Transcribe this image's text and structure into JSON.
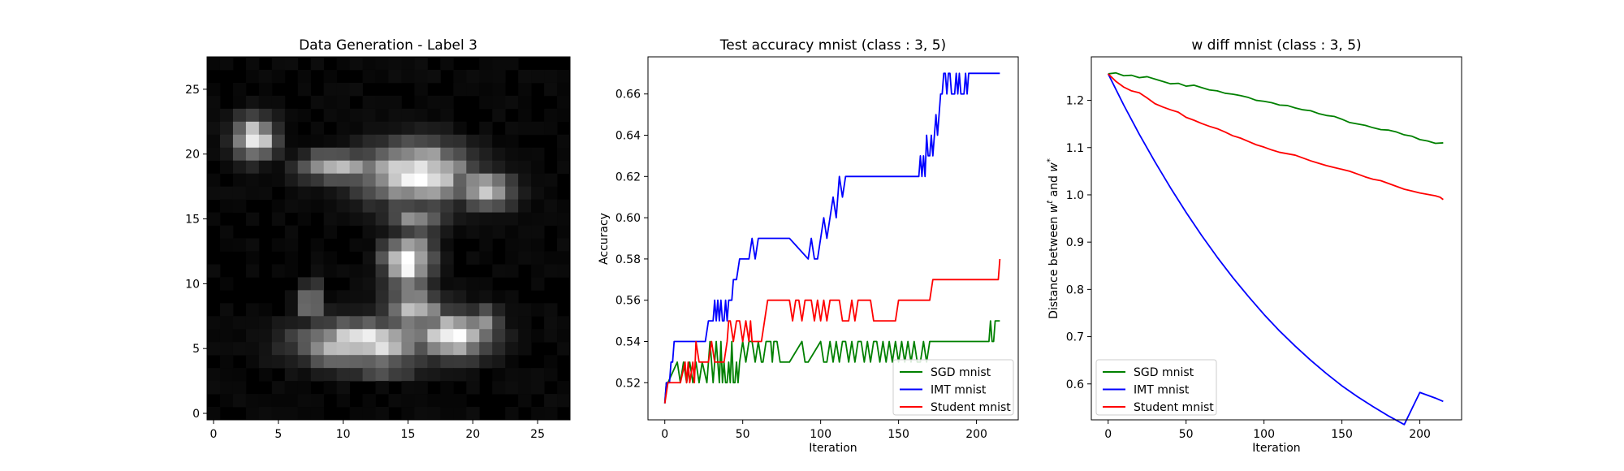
{
  "chart_data": [
    {
      "type": "heatmap",
      "title": "Data Generation - Label 3",
      "xticks": [
        0,
        5,
        10,
        15,
        20,
        25
      ],
      "yticks": [
        0,
        5,
        10,
        15,
        20,
        25
      ],
      "xlim": [
        -0.5,
        27.5
      ],
      "ylim": [
        27.5,
        -0.5
      ],
      "colormap": "gray",
      "grid": false,
      "blobs": [
        {
          "cx": 3.2,
          "cy": 5.8,
          "rx": 1.6,
          "ry": 1.6,
          "v": 0.9
        },
        {
          "cx": 9.5,
          "cy": 8.0,
          "rx": 2.8,
          "ry": 1.2,
          "v": 0.72
        },
        {
          "cx": 15.5,
          "cy": 8.5,
          "rx": 4.2,
          "ry": 2.3,
          "v": 1.0
        },
        {
          "cx": 21.0,
          "cy": 9.8,
          "rx": 2.2,
          "ry": 1.3,
          "v": 0.85
        },
        {
          "cx": 15.5,
          "cy": 12.0,
          "rx": 2.2,
          "ry": 1.3,
          "v": 0.55
        },
        {
          "cx": 15.0,
          "cy": 15.3,
          "rx": 1.8,
          "ry": 2.0,
          "v": 1.0
        },
        {
          "cx": 15.5,
          "cy": 19.0,
          "rx": 2.4,
          "ry": 1.5,
          "v": 0.72
        },
        {
          "cx": 11.5,
          "cy": 21.6,
          "rx": 4.8,
          "ry": 1.7,
          "v": 0.95
        },
        {
          "cx": 18.5,
          "cy": 21.0,
          "rx": 3.0,
          "ry": 1.7,
          "v": 0.9
        },
        {
          "cx": 7.5,
          "cy": 18.5,
          "rx": 0.9,
          "ry": 1.5,
          "v": 0.55
        },
        {
          "cx": 21.0,
          "cy": 20.2,
          "rx": 1.2,
          "ry": 1.4,
          "v": 0.55
        },
        {
          "cx": 13.0,
          "cy": 23.5,
          "rx": 3.5,
          "ry": 0.8,
          "v": 0.4
        }
      ]
    },
    {
      "type": "line",
      "title": "Test accuracy mnist (class : 3, 5)",
      "xlabel": "Iteration",
      "ylabel": "Accuracy",
      "xlim": [
        -10.8,
        226.8
      ],
      "ylim": [
        0.502,
        0.678
      ],
      "xticks": [
        0,
        50,
        100,
        150,
        200
      ],
      "yticks": [
        0.52,
        0.54,
        0.56,
        0.58,
        0.6,
        0.62,
        0.64,
        0.66
      ],
      "yticklabels": [
        "0.52",
        "0.54",
        "0.56",
        "0.58",
        "0.60",
        "0.62",
        "0.64",
        "0.66"
      ],
      "legend_position": "lower-right",
      "grid": false,
      "series": [
        {
          "name": "SGD mnist",
          "color": "#008000",
          "x": [
            0,
            1,
            2,
            8,
            10,
            12,
            14,
            16,
            18,
            20,
            22,
            24,
            27,
            29,
            31,
            33,
            34,
            35,
            36,
            37,
            38,
            39,
            40,
            41,
            42,
            43,
            44,
            45,
            46,
            47,
            48,
            50,
            52,
            54,
            56,
            58,
            60,
            62,
            63,
            65,
            68,
            69,
            70,
            72,
            74,
            80,
            88,
            90,
            92,
            100,
            102,
            104,
            106,
            108,
            110,
            112,
            114,
            116,
            118,
            120,
            122,
            124,
            126,
            128,
            130,
            132,
            134,
            136,
            138,
            140,
            142,
            144,
            146,
            148,
            150,
            152,
            154,
            156,
            158,
            160,
            162,
            164,
            166,
            168,
            170,
            172,
            208,
            209,
            210,
            211,
            212,
            215
          ],
          "y": [
            0.51,
            0.52,
            0.52,
            0.53,
            0.52,
            0.53,
            0.52,
            0.53,
            0.52,
            0.53,
            0.52,
            0.53,
            0.52,
            0.54,
            0.52,
            0.54,
            0.53,
            0.52,
            0.54,
            0.52,
            0.53,
            0.52,
            0.52,
            0.53,
            0.52,
            0.54,
            0.52,
            0.52,
            0.53,
            0.52,
            0.53,
            0.54,
            0.53,
            0.54,
            0.54,
            0.53,
            0.54,
            0.53,
            0.53,
            0.54,
            0.54,
            0.53,
            0.54,
            0.54,
            0.53,
            0.53,
            0.54,
            0.53,
            0.53,
            0.54,
            0.53,
            0.53,
            0.54,
            0.53,
            0.54,
            0.53,
            0.54,
            0.54,
            0.53,
            0.54,
            0.53,
            0.54,
            0.54,
            0.53,
            0.54,
            0.53,
            0.54,
            0.54,
            0.53,
            0.54,
            0.53,
            0.54,
            0.53,
            0.54,
            0.53,
            0.54,
            0.53,
            0.54,
            0.53,
            0.54,
            0.53,
            0.53,
            0.54,
            0.53,
            0.54,
            0.54,
            0.54,
            0.55,
            0.54,
            0.54,
            0.55,
            0.55
          ]
        },
        {
          "name": "IMT mnist",
          "color": "#0000ff",
          "x": [
            0,
            1,
            3,
            4,
            5,
            6,
            8,
            10,
            12,
            14,
            16,
            18,
            20,
            22,
            24,
            26,
            28,
            30,
            31,
            32,
            33,
            34,
            35,
            36,
            37,
            38,
            39,
            40,
            41,
            42,
            43,
            44,
            45,
            46,
            48,
            50,
            52,
            54,
            56,
            58,
            60,
            62,
            63,
            64,
            70,
            80,
            92,
            94,
            96,
            98,
            100,
            102,
            104,
            106,
            108,
            110,
            112,
            114,
            116,
            118,
            120,
            122,
            124,
            126,
            128,
            130,
            150,
            163,
            164,
            165,
            166,
            167,
            168,
            169,
            170,
            171,
            172,
            173,
            174,
            175,
            176,
            177,
            178,
            179,
            180,
            181,
            182,
            183,
            184,
            185,
            186,
            187,
            188,
            189,
            190,
            191,
            192,
            193,
            194,
            195,
            196,
            197,
            198,
            199,
            200,
            201,
            202,
            203,
            204,
            205,
            206,
            207,
            208,
            215
          ],
          "y": [
            0.51,
            0.52,
            0.52,
            0.53,
            0.53,
            0.54,
            0.54,
            0.54,
            0.54,
            0.54,
            0.54,
            0.54,
            0.54,
            0.54,
            0.54,
            0.54,
            0.55,
            0.55,
            0.55,
            0.56,
            0.55,
            0.56,
            0.55,
            0.56,
            0.55,
            0.55,
            0.56,
            0.55,
            0.56,
            0.56,
            0.56,
            0.57,
            0.57,
            0.57,
            0.58,
            0.58,
            0.58,
            0.58,
            0.59,
            0.58,
            0.59,
            0.59,
            0.59,
            0.59,
            0.59,
            0.59,
            0.58,
            0.59,
            0.58,
            0.58,
            0.59,
            0.6,
            0.59,
            0.6,
            0.61,
            0.6,
            0.62,
            0.61,
            0.62,
            0.62,
            0.62,
            0.62,
            0.62,
            0.62,
            0.62,
            0.62,
            0.62,
            0.62,
            0.63,
            0.62,
            0.63,
            0.62,
            0.64,
            0.63,
            0.63,
            0.64,
            0.63,
            0.64,
            0.65,
            0.64,
            0.65,
            0.66,
            0.66,
            0.67,
            0.67,
            0.66,
            0.67,
            0.67,
            0.66,
            0.66,
            0.66,
            0.67,
            0.66,
            0.67,
            0.66,
            0.66,
            0.66,
            0.67,
            0.66,
            0.67,
            0.67,
            0.67,
            0.67,
            0.67,
            0.67,
            0.67,
            0.67,
            0.67,
            0.67,
            0.67,
            0.67,
            0.67,
            0.67,
            0.67
          ]
        },
        {
          "name": "Student mnist",
          "color": "#ff0000",
          "x": [
            0,
            2,
            10,
            13,
            14,
            15,
            16,
            18,
            19,
            20,
            22,
            26,
            28,
            30,
            32,
            38,
            40,
            41,
            42,
            44,
            46,
            48,
            50,
            52,
            54,
            55,
            56,
            58,
            60,
            62,
            64,
            66,
            68,
            70,
            72,
            74,
            76,
            78,
            80,
            82,
            84,
            86,
            88,
            90,
            92,
            94,
            96,
            98,
            100,
            102,
            104,
            106,
            108,
            110,
            112,
            114,
            116,
            118,
            120,
            122,
            124,
            126,
            128,
            130,
            132,
            134,
            136,
            138,
            140,
            142,
            144,
            146,
            148,
            150,
            152,
            154,
            156,
            158,
            160,
            162,
            164,
            166,
            168,
            170,
            172,
            174,
            176,
            178,
            180,
            182,
            184,
            186,
            188,
            190,
            192,
            194,
            196,
            198,
            200,
            202,
            204,
            206,
            208,
            210,
            212,
            213,
            214,
            215
          ],
          "y": [
            0.51,
            0.52,
            0.52,
            0.53,
            0.52,
            0.53,
            0.52,
            0.53,
            0.52,
            0.54,
            0.53,
            0.53,
            0.53,
            0.54,
            0.53,
            0.53,
            0.54,
            0.55,
            0.55,
            0.54,
            0.55,
            0.55,
            0.54,
            0.55,
            0.54,
            0.55,
            0.54,
            0.54,
            0.54,
            0.54,
            0.55,
            0.56,
            0.56,
            0.56,
            0.56,
            0.56,
            0.56,
            0.56,
            0.56,
            0.55,
            0.56,
            0.56,
            0.55,
            0.56,
            0.56,
            0.56,
            0.55,
            0.56,
            0.55,
            0.56,
            0.55,
            0.56,
            0.56,
            0.56,
            0.56,
            0.55,
            0.55,
            0.55,
            0.56,
            0.55,
            0.56,
            0.56,
            0.56,
            0.56,
            0.56,
            0.55,
            0.55,
            0.55,
            0.55,
            0.55,
            0.55,
            0.55,
            0.55,
            0.56,
            0.56,
            0.56,
            0.56,
            0.56,
            0.56,
            0.56,
            0.56,
            0.56,
            0.56,
            0.56,
            0.57,
            0.57,
            0.57,
            0.57,
            0.57,
            0.57,
            0.57,
            0.57,
            0.57,
            0.57,
            0.57,
            0.57,
            0.57,
            0.57,
            0.57,
            0.57,
            0.57,
            0.57,
            0.57,
            0.57,
            0.57,
            0.57,
            0.57,
            0.58
          ]
        }
      ]
    },
    {
      "type": "line",
      "title": "w diff mnist (class : 3, 5)",
      "xlabel": "Iteration",
      "ylabel": "Distance between w^t and w^*",
      "xlim": [
        -10.8,
        226.8
      ],
      "ylim": [
        0.524,
        1.292
      ],
      "xticks": [
        0,
        50,
        100,
        150,
        200
      ],
      "yticks": [
        0.6,
        0.7,
        0.8,
        0.9,
        1.0,
        1.1,
        1.2
      ],
      "yticklabels": [
        "0.6",
        "0.7",
        "0.8",
        "0.9",
        "1.0",
        "1.1",
        "1.2"
      ],
      "legend_position": "lower-left",
      "grid": false,
      "series": [
        {
          "name": "SGD mnist",
          "color": "#008000",
          "x": [
            0,
            5,
            10,
            15,
            20,
            25,
            30,
            35,
            40,
            45,
            50,
            55,
            60,
            65,
            70,
            75,
            80,
            85,
            90,
            95,
            100,
            105,
            110,
            115,
            120,
            125,
            130,
            135,
            140,
            145,
            150,
            155,
            160,
            165,
            170,
            175,
            180,
            185,
            190,
            195,
            200,
            205,
            210,
            215
          ],
          "y": [
            1.256,
            1.258,
            1.252,
            1.253,
            1.248,
            1.25,
            1.245,
            1.24,
            1.235,
            1.236,
            1.23,
            1.232,
            1.227,
            1.222,
            1.22,
            1.215,
            1.213,
            1.21,
            1.206,
            1.2,
            1.198,
            1.195,
            1.19,
            1.189,
            1.184,
            1.18,
            1.178,
            1.172,
            1.168,
            1.166,
            1.16,
            1.153,
            1.15,
            1.147,
            1.142,
            1.138,
            1.137,
            1.133,
            1.127,
            1.124,
            1.117,
            1.114,
            1.109,
            1.11
          ]
        },
        {
          "name": "IMT mnist",
          "color": "#0000ff",
          "x": [
            0,
            10,
            20,
            30,
            40,
            50,
            60,
            70,
            80,
            90,
            100,
            110,
            120,
            130,
            140,
            150,
            160,
            170,
            180,
            190,
            200,
            210,
            215
          ],
          "y": [
            1.256,
            1.19,
            1.128,
            1.07,
            1.015,
            0.963,
            0.914,
            0.868,
            0.825,
            0.785,
            0.747,
            0.712,
            0.68,
            0.65,
            0.622,
            0.596,
            0.573,
            0.552,
            0.532,
            0.514,
            0.582,
            0.57,
            0.563
          ]
        },
        {
          "name": "Student mnist",
          "color": "#ff0000",
          "x": [
            0,
            5,
            10,
            15,
            20,
            25,
            30,
            35,
            40,
            45,
            50,
            55,
            60,
            65,
            70,
            75,
            80,
            85,
            90,
            95,
            100,
            105,
            110,
            115,
            120,
            125,
            130,
            135,
            140,
            145,
            150,
            155,
            160,
            165,
            170,
            175,
            180,
            185,
            190,
            195,
            200,
            205,
            210,
            213,
            215
          ],
          "y": [
            1.256,
            1.24,
            1.228,
            1.22,
            1.216,
            1.205,
            1.193,
            1.186,
            1.18,
            1.175,
            1.164,
            1.158,
            1.151,
            1.145,
            1.14,
            1.133,
            1.125,
            1.12,
            1.113,
            1.106,
            1.101,
            1.095,
            1.09,
            1.087,
            1.084,
            1.078,
            1.072,
            1.067,
            1.062,
            1.058,
            1.054,
            1.05,
            1.044,
            1.038,
            1.033,
            1.03,
            1.024,
            1.018,
            1.012,
            1.008,
            1.004,
            1.001,
            0.998,
            0.995,
            0.99
          ]
        }
      ]
    }
  ]
}
